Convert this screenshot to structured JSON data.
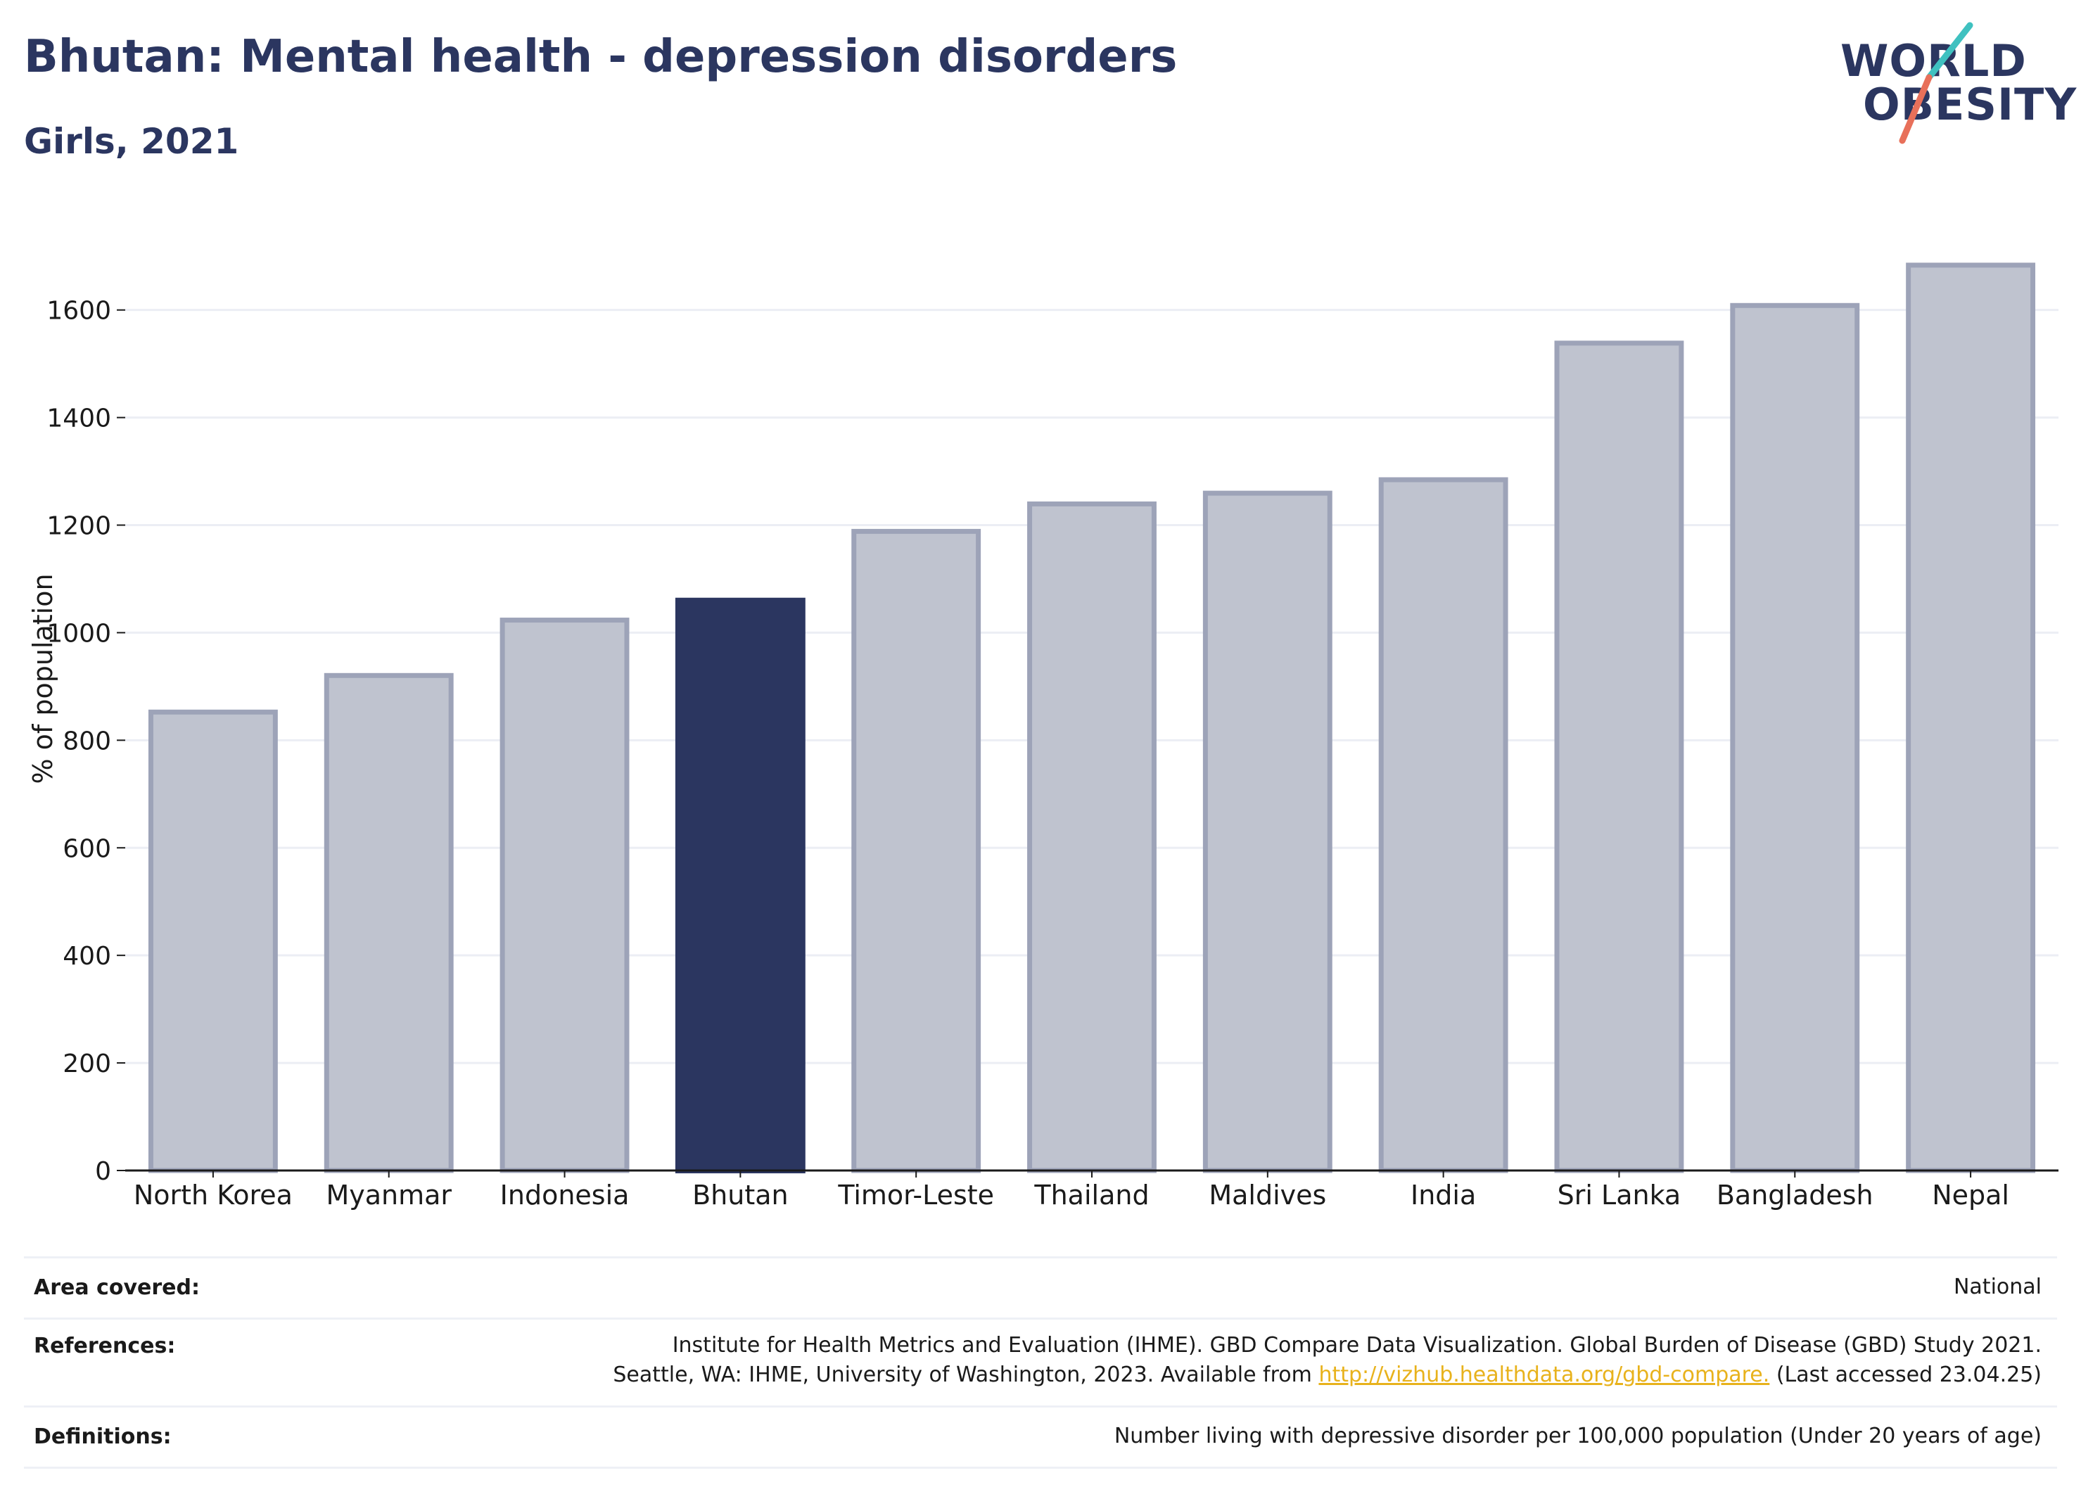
{
  "header": {
    "title": "Bhutan: Mental health - depression disorders",
    "subtitle": "Girls, 2021"
  },
  "logo": {
    "line1": "WORLD",
    "line2": "OBESITY",
    "brand_color": "#2b3660",
    "accent_teal": "#3fc1c0",
    "accent_coral": "#e8705a"
  },
  "colors": {
    "highlight_bar": "#2b3660",
    "other_bar_fill": "#bfc3cf",
    "other_bar_stroke": "#9da3b8",
    "gridline": "#eceef4"
  },
  "chart_data": {
    "type": "bar",
    "categories": [
      "North Korea",
      "Myanmar",
      "Indonesia",
      "Bhutan",
      "Timor-Leste",
      "Thailand",
      "Maldives",
      "India",
      "Sri Lanka",
      "Bangladesh",
      "Nepal"
    ],
    "values": [
      855,
      923,
      1026,
      1065,
      1191,
      1242,
      1262,
      1287,
      1541,
      1611,
      1686
    ],
    "highlight": "Bhutan",
    "ylabel": "% of population",
    "xlabel": "",
    "ylim": [
      0,
      1750
    ],
    "yticks": [
      0,
      200,
      400,
      600,
      800,
      1000,
      1200,
      1400,
      1600
    ],
    "grid": true
  },
  "meta": {
    "area_label": "Area covered:",
    "area_value": "National",
    "references_label": "References:",
    "references_line1": "Institute for Health Metrics and Evaluation (IHME). GBD Compare Data Visualization. Global Burden of Disease (GBD) Study 2021.",
    "references_line2_prefix": "Seattle, WA: IHME, University of Washington, 2023. Available from",
    "references_link": "http://vizhub.healthdata.org/gbd-compare.",
    "references_line2_suffix": "(Last accessed 23.04.25)",
    "definitions_label": "Definitions:",
    "definitions_value": "Number living with depressive disorder per 100,000 population (Under 20 years of age)"
  }
}
